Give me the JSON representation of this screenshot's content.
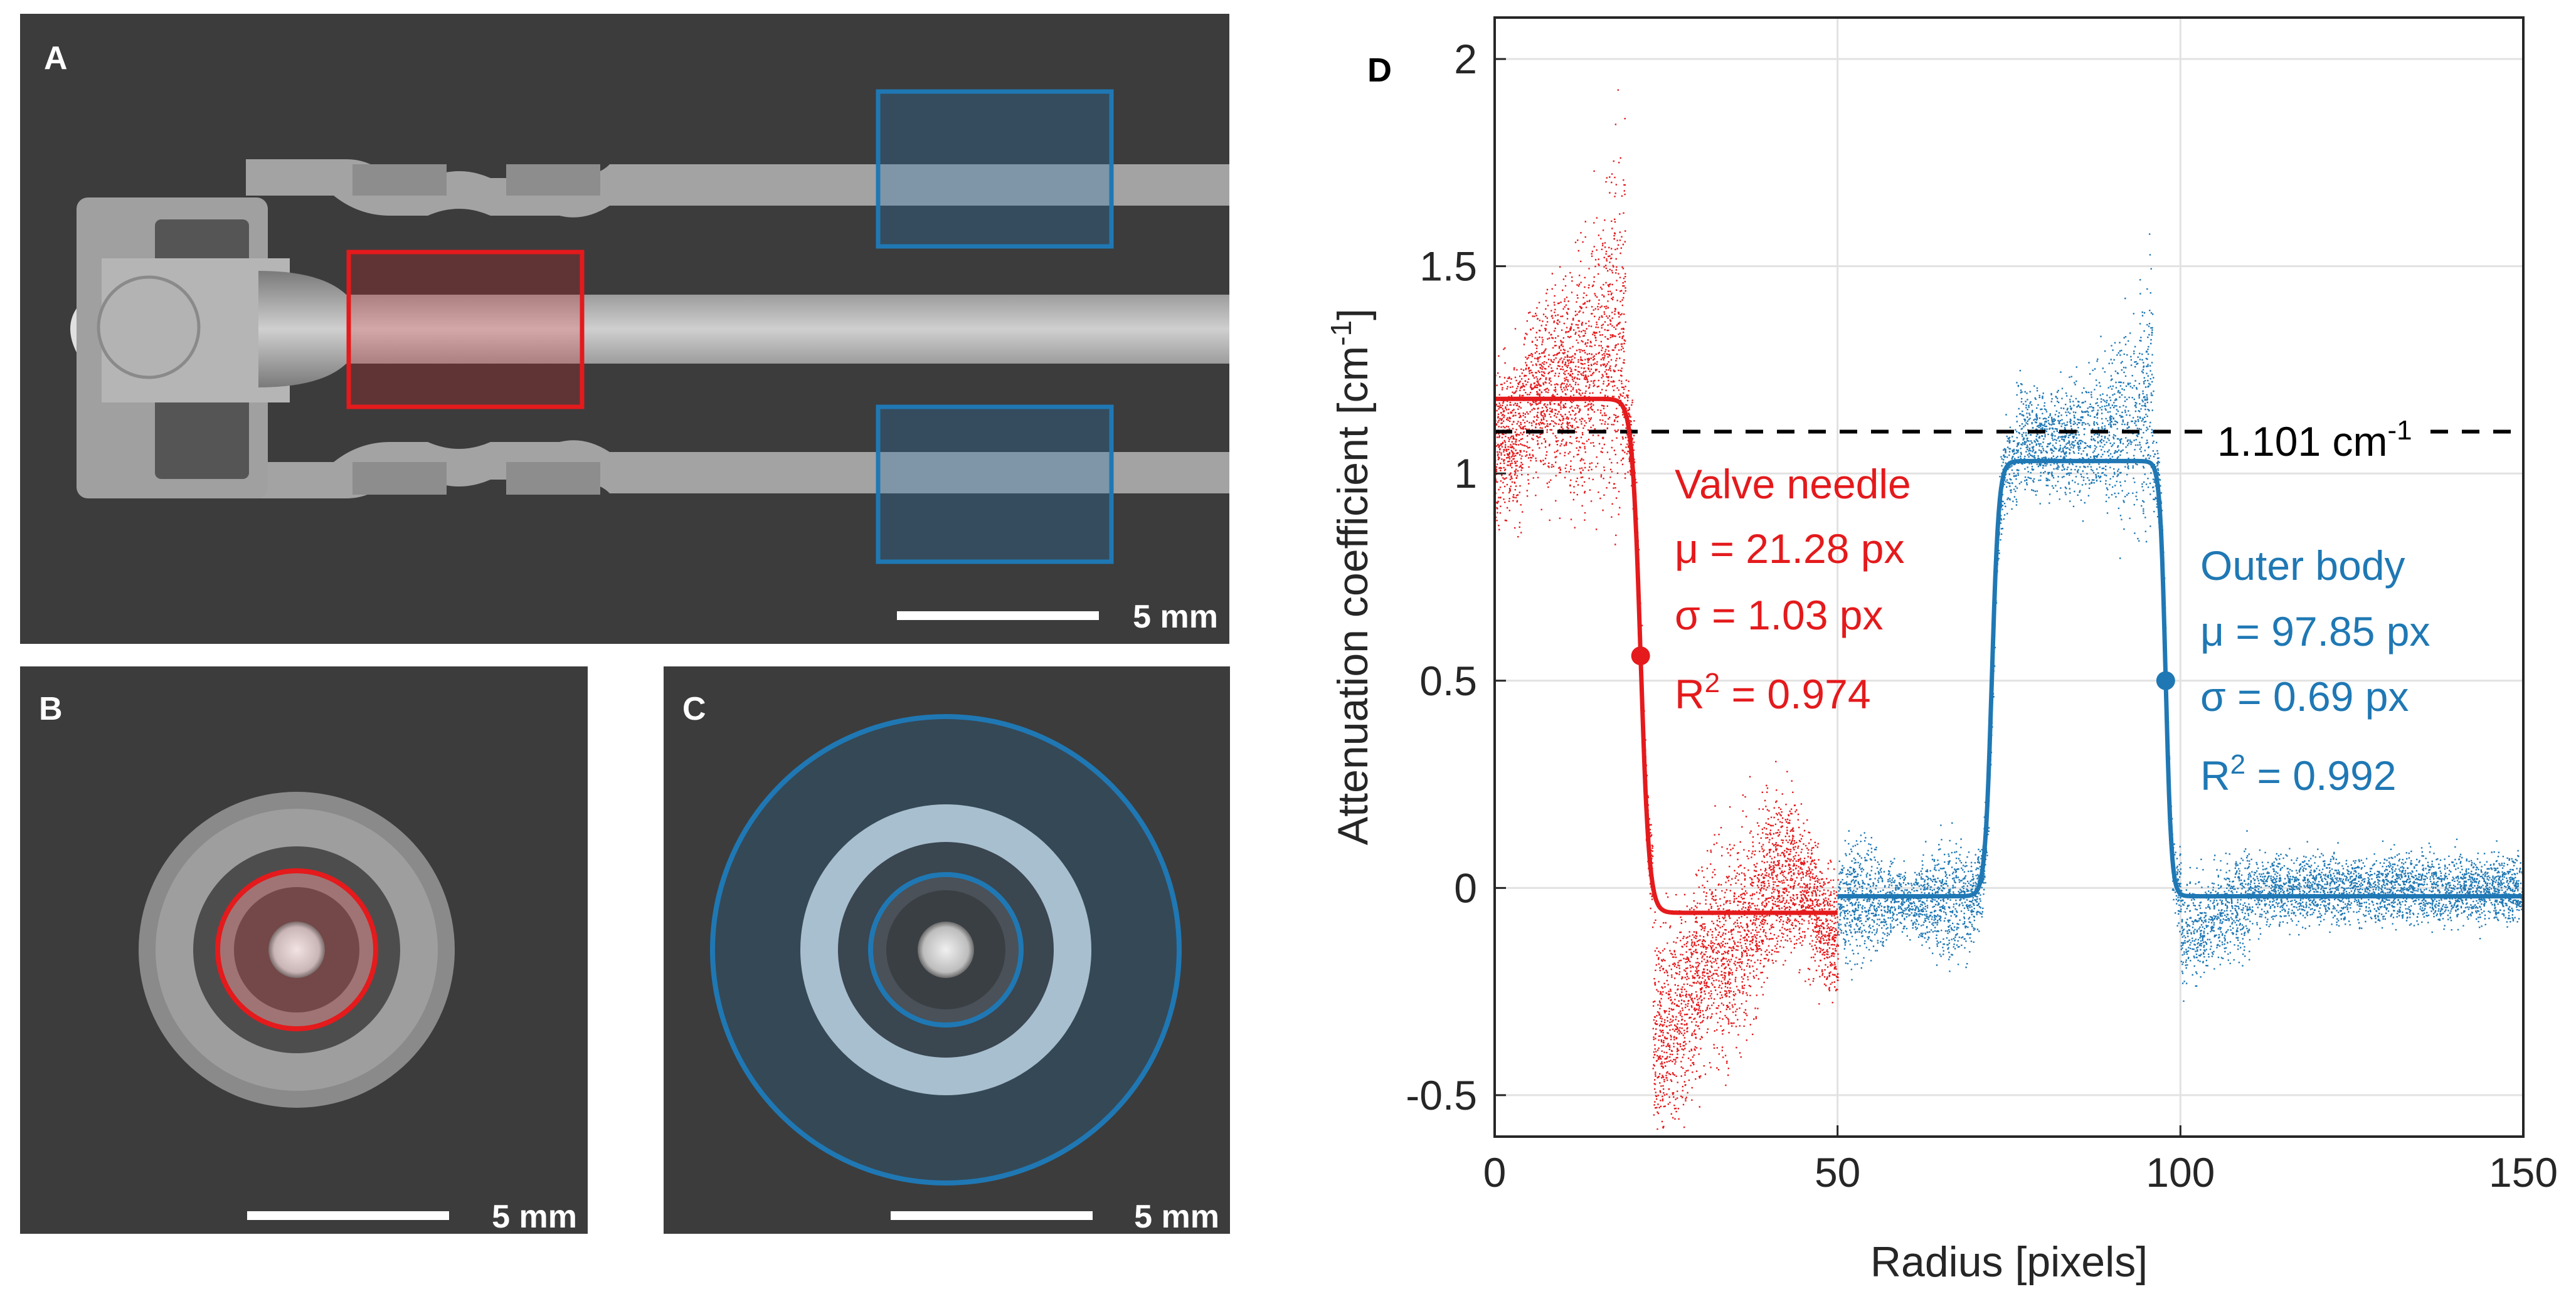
{
  "panels": {
    "A": {
      "label": "A",
      "scalebar": "5 mm"
    },
    "B": {
      "label": "B",
      "scalebar": "5 mm"
    },
    "C": {
      "label": "C",
      "scalebar": "5 mm"
    },
    "D": {
      "label": "D"
    }
  },
  "colors": {
    "needle": "#e41a1c",
    "body": "#1f78b4",
    "ct_background": "#3c3c3c",
    "ct_material": "#9c9c9c"
  },
  "chart_data": {
    "type": "scatter",
    "xlabel": "Radius [pixels]",
    "ylabel": "Attenuation coefficient [cm",
    "ylabel_sup": "-1",
    "ylabel_end": "]",
    "xlim": [
      0,
      150
    ],
    "ylim": [
      -0.6,
      2.1
    ],
    "xticks": [
      0,
      50,
      100,
      150
    ],
    "yticks": [
      -0.5,
      0,
      0.5,
      1,
      1.5,
      2
    ],
    "xtick_labels": [
      "0",
      "50",
      "100",
      "150"
    ],
    "ytick_labels": [
      "-0.5",
      "0",
      "0.5",
      "1",
      "1.5",
      "2"
    ],
    "grid": true,
    "threshold": {
      "y": 1.101,
      "label": "1.101 cm",
      "label_sup": "-1"
    },
    "series": [
      {
        "name": "Valve needle",
        "color": "#e41a1c",
        "x_range": [
          0,
          50
        ],
        "fit": {
          "high": 1.18,
          "low": -0.06,
          "mu": 21.28,
          "sigma": 1.03
        },
        "marker": {
          "x": 21.28,
          "y": 0.56
        },
        "stats": [
          "μ = 21.28 px",
          "σ = 1.03 px",
          "R",
          "2",
          " = 0.974"
        ]
      },
      {
        "name": "Outer body",
        "color": "#1f78b4",
        "x_range": [
          50,
          150
        ],
        "fit": {
          "low": -0.02,
          "high": 1.03,
          "rise": 72.5,
          "mu": 97.85,
          "sigma": 0.69
        },
        "marker": {
          "x": 97.85,
          "y": 0.5
        },
        "stats": [
          "μ = 97.85 px",
          "σ = 0.69 px",
          "R",
          "2",
          " = 0.992"
        ]
      }
    ]
  }
}
